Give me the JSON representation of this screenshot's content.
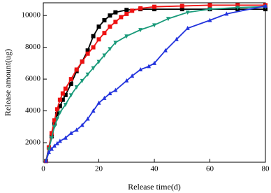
{
  "chart_data": {
    "type": "line",
    "xlabel": "Release time(d)",
    "ylabel": "Release amount(ug)",
    "xlim": [
      0,
      80
    ],
    "xticks": [
      0,
      20,
      40,
      60,
      80
    ],
    "ylim": [
      770,
      10800
    ],
    "yticks": [
      2000,
      4000,
      6000,
      8000,
      10000
    ],
    "series": [
      {
        "color": "#000000",
        "marker": "square",
        "x": [
          1,
          2,
          3,
          4,
          5,
          6,
          7,
          8,
          10,
          12,
          14,
          16,
          18,
          20,
          22,
          24,
          26,
          30,
          35,
          40,
          50,
          60,
          70,
          80
        ],
        "values": [
          850,
          1700,
          2400,
          3200,
          3800,
          4300,
          4700,
          5000,
          5700,
          6500,
          7100,
          7800,
          8700,
          9300,
          9700,
          10000,
          10200,
          10350,
          10400,
          10400,
          10400,
          10400,
          10400,
          10400
        ]
      },
      {
        "color": "#ee1111",
        "marker": "square",
        "x": [
          1,
          2,
          3,
          4,
          5,
          6,
          7,
          8,
          10,
          12,
          14,
          16,
          18,
          20,
          22,
          24,
          26,
          28,
          30,
          32,
          35,
          40,
          50,
          60,
          70,
          80
        ],
        "values": [
          850,
          1700,
          2600,
          3400,
          4100,
          4700,
          5100,
          5400,
          6000,
          6600,
          7100,
          7600,
          8000,
          8500,
          8900,
          9300,
          9600,
          9900,
          10100,
          10300,
          10450,
          10550,
          10600,
          10650,
          10650,
          10650
        ]
      },
      {
        "color": "#1a9a7a",
        "marker": "triangle-down",
        "x": [
          1,
          2,
          3,
          4,
          5,
          6,
          8,
          10,
          12,
          14,
          16,
          18,
          20,
          22,
          24,
          26,
          30,
          35,
          40,
          45,
          52,
          60,
          70,
          80
        ],
        "values": [
          850,
          1600,
          2300,
          3000,
          3500,
          3900,
          4400,
          5000,
          5500,
          5900,
          6300,
          6700,
          7100,
          7500,
          7900,
          8300,
          8700,
          9100,
          9400,
          9800,
          10200,
          10400,
          10500,
          10550
        ]
      },
      {
        "color": "#2233dd",
        "marker": "triangle",
        "x": [
          1,
          2,
          3,
          4,
          5,
          6,
          8,
          10,
          12,
          14,
          16,
          18,
          20,
          22,
          24,
          26,
          30,
          32,
          35,
          38,
          40,
          44,
          48,
          52,
          60,
          66,
          80
        ],
        "values": [
          850,
          1400,
          1600,
          1800,
          1950,
          2100,
          2300,
          2600,
          2800,
          3100,
          3500,
          4000,
          4500,
          4800,
          5100,
          5300,
          5900,
          6200,
          6600,
          6800,
          7000,
          7800,
          8500,
          9200,
          9700,
          10100,
          10600
        ]
      }
    ]
  }
}
